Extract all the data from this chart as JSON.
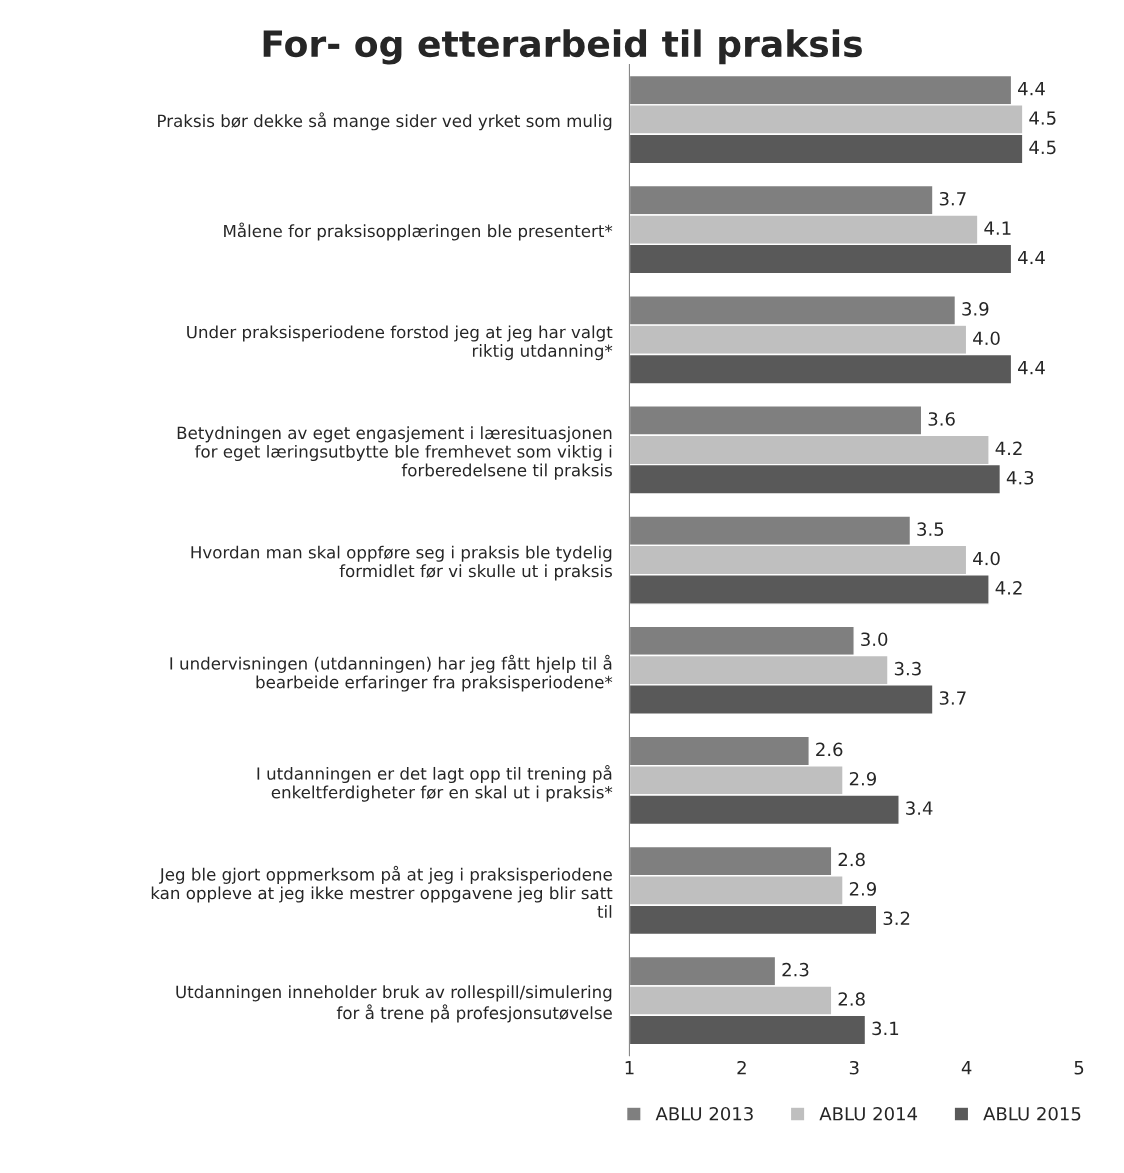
{
  "chart_data": {
    "type": "bar",
    "orientation": "horizontal",
    "title": "For- og etterarbeid til praksis",
    "categories": [
      "Praksis bør dekke så mange sider ved yrket som mulig",
      "Målene for praksisopplæringen ble presentert*",
      "Under praksisperiodene forstod jeg at jeg har valgt\nriktig utdanning*",
      "Betydningen av eget engasjement i læresituasjonen\nfor eget læringsutbytte ble fremhevet som viktig i\nforberedelsene til praksis",
      "Hvordan man skal oppføre seg i praksis ble tydelig\nformidlet før vi skulle ut i praksis",
      "I undervisningen (utdanningen) har jeg fått hjelp til å\nbearbeide erfaringer fra praksisperiodene*",
      "I utdanningen er det lagt opp til trening på\nenkeltferdigheter før en skal ut i praksis*",
      "Jeg ble gjort oppmerksom på at jeg i praksisperiodene\nkan oppleve at jeg ikke mestrer oppgavene jeg blir satt\ntil",
      "Utdanningen inneholder bruk av rollespill/simulering\nfor å trene på profesjonsutøvelse"
    ],
    "series": [
      {
        "name": "ABLU 2013",
        "color": "#7f7f7f",
        "values": [
          4.4,
          3.7,
          3.9,
          3.6,
          3.5,
          3.0,
          2.6,
          2.8,
          2.3
        ],
        "value_labels": [
          "4.4",
          "3.7",
          "3.9",
          "3.6",
          "3.5",
          "3.0",
          "2.6",
          "2.8",
          "2.3"
        ]
      },
      {
        "name": "ABLU 2014",
        "color": "#bfbfbf",
        "values": [
          4.5,
          4.1,
          4.0,
          4.2,
          4.0,
          3.3,
          2.9,
          2.9,
          2.8
        ],
        "value_labels": [
          "4.5",
          "4.1",
          "4.0",
          "4.2",
          "4.0",
          "3.3",
          "2.9",
          "2.9",
          "2.8"
        ]
      },
      {
        "name": "ABLU 2015",
        "color": "#595959",
        "values": [
          4.5,
          4.4,
          4.4,
          4.3,
          4.2,
          3.7,
          3.4,
          3.2,
          3.1
        ],
        "value_labels": [
          "4.5",
          "4.4",
          "4.4",
          "4.3",
          "4.2",
          "3.7",
          "3.4",
          "3.2",
          "3.1"
        ]
      }
    ],
    "xlim": [
      1,
      5
    ],
    "xticks": [
      1,
      2,
      3,
      4,
      5
    ],
    "legend": "bottom",
    "grid": false
  }
}
